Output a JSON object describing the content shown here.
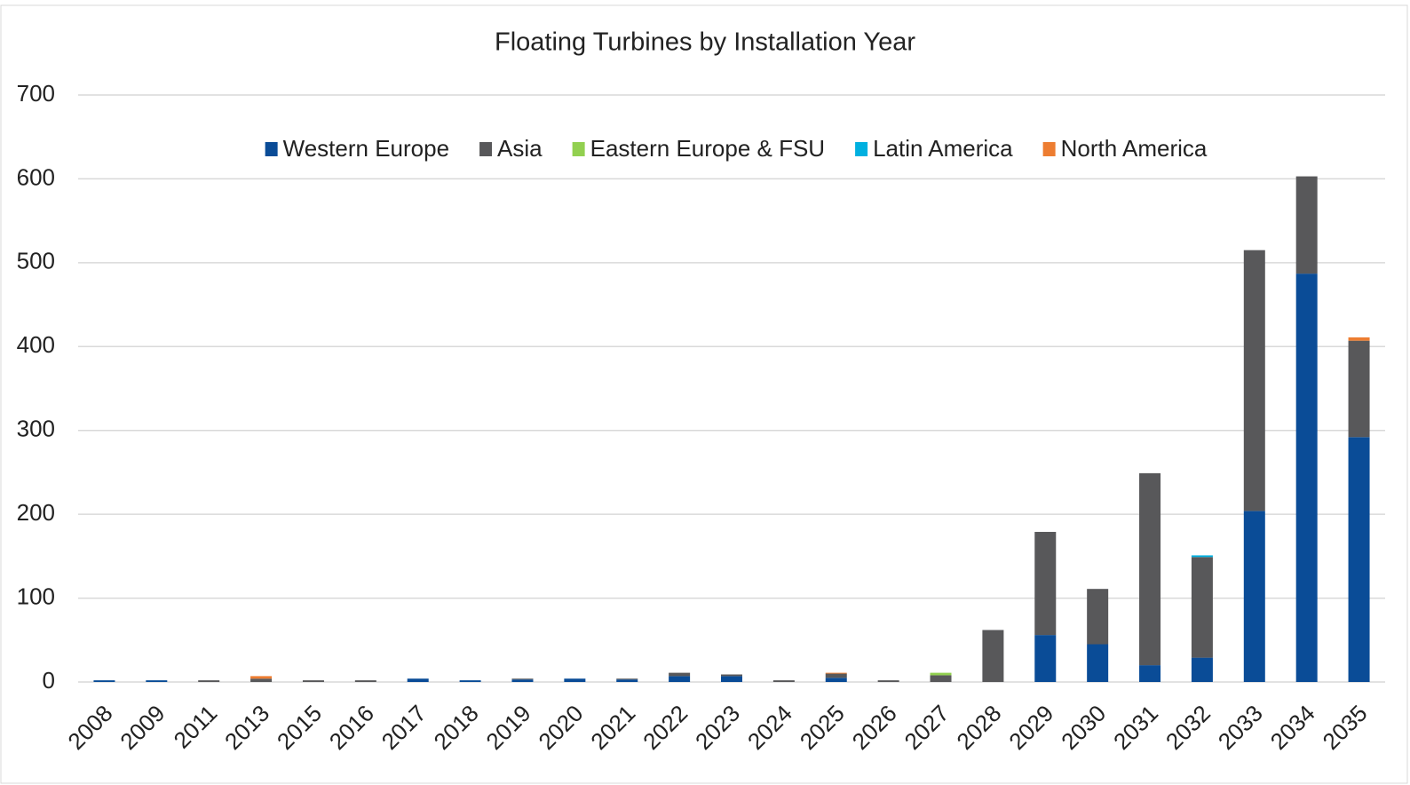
{
  "chart_data": {
    "type": "stacked_bar",
    "title": "Floating Turbines by Installation Year",
    "categories": [
      "2008",
      "2009",
      "2011",
      "2013",
      "2015",
      "2016",
      "2017",
      "2018",
      "2019",
      "2020",
      "2021",
      "2022",
      "2023",
      "2024",
      "2025",
      "2026",
      "2027",
      "2028",
      "2029",
      "2030",
      "2031",
      "2032",
      "2033",
      "2034",
      "2035"
    ],
    "series": [
      {
        "name": "Western Europe",
        "color": "#0a4c97",
        "values": [
          2,
          2,
          0,
          0,
          0,
          0,
          4,
          2,
          3,
          4,
          3,
          7,
          7,
          0,
          5,
          0,
          0,
          0,
          56,
          45,
          20,
          29,
          204,
          487,
          292
        ]
      },
      {
        "name": "Asia",
        "color": "#58585a",
        "values": [
          0,
          0,
          2,
          4,
          2,
          2,
          0,
          0,
          1,
          0,
          1,
          4,
          2,
          2,
          5,
          2,
          8,
          62,
          123,
          66,
          229,
          120,
          311,
          116,
          115
        ]
      },
      {
        "name": "Eastern Europe & FSU",
        "color": "#92d050",
        "values": [
          0,
          0,
          0,
          0,
          0,
          0,
          0,
          0,
          0,
          0,
          0,
          0,
          0,
          0,
          0,
          0,
          3,
          0,
          0,
          0,
          0,
          0,
          0,
          0,
          0
        ]
      },
      {
        "name": "Latin America",
        "color": "#00b0e0",
        "values": [
          0,
          0,
          0,
          0,
          0,
          0,
          0,
          0,
          0,
          0,
          0,
          0,
          0,
          0,
          0,
          0,
          0,
          0,
          0,
          0,
          0,
          2,
          0,
          0,
          0
        ]
      },
      {
        "name": "North America",
        "color": "#ed7d31",
        "values": [
          0,
          0,
          0,
          3,
          0,
          0,
          0,
          0,
          0,
          0,
          0,
          0,
          0,
          0,
          1,
          0,
          0,
          0,
          0,
          0,
          0,
          0,
          0,
          0,
          4
        ]
      }
    ],
    "ylim": [
      0,
      700
    ],
    "yticks": [
      0,
      100,
      200,
      300,
      400,
      500,
      600,
      700
    ],
    "grid": true,
    "legend": "top"
  }
}
